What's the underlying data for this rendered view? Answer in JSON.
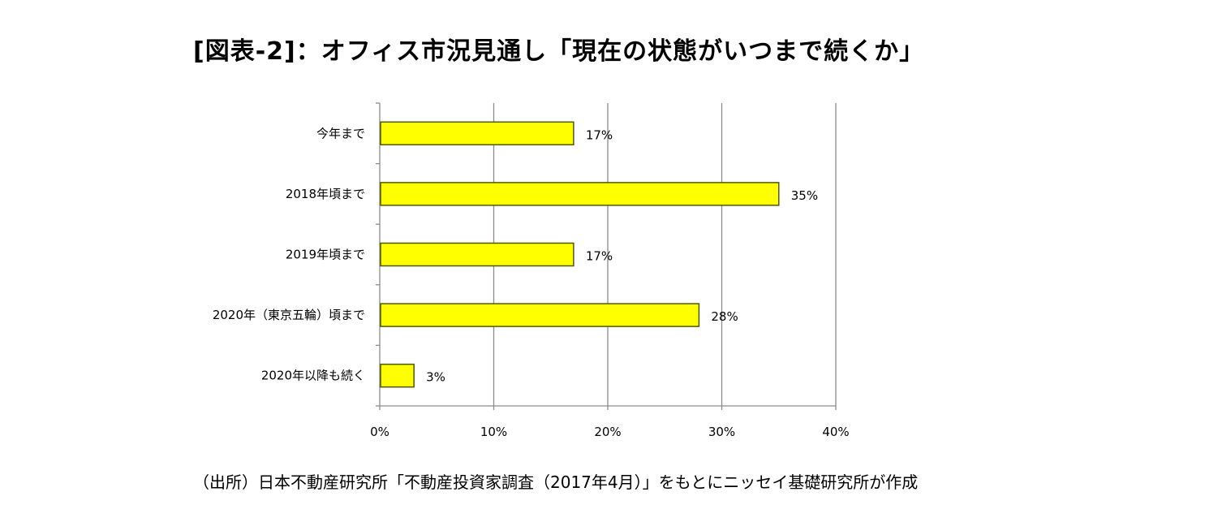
{
  "title": "[図表-2]：オフィス市況見通し「現在の状態がいつまで続くか」",
  "source": "（出所）日本不動産研究所「不動産投資家調査（2017年4月）」をもとにニッセイ基礎研究所が作成",
  "chart_data": {
    "type": "bar",
    "orientation": "horizontal",
    "title": "[図表-2]：オフィス市況見通し「現在の状態がいつまで続くか」",
    "categories": [
      "今年まで",
      "2018年頃まで",
      "2019年頃まで",
      "2020年（東京五輪）頃まで",
      "2020年以降も続く"
    ],
    "values": [
      17,
      35,
      17,
      28,
      3
    ],
    "value_labels": [
      "17%",
      "35%",
      "17%",
      "28%",
      "3%"
    ],
    "value_unit": "%",
    "xlim": [
      0,
      40
    ],
    "xticks": [
      0,
      10,
      20,
      30,
      40
    ],
    "xtick_labels": [
      "0%",
      "10%",
      "20%",
      "30%",
      "40%"
    ],
    "grid": "vertical",
    "legend": "none",
    "colors": {
      "bar_fill": "#ffff00",
      "bar_stroke": "#4a5a00",
      "grid": "#8c8c8c",
      "axis": "#8c8c8c"
    }
  }
}
